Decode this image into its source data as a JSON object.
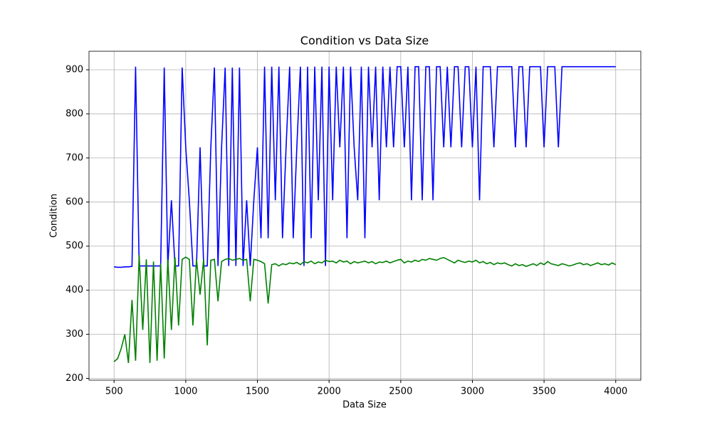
{
  "chart_data": {
    "type": "line",
    "title": "Condition vs Data Size",
    "x_label": "Data Size",
    "y_label": "Condition",
    "x": [
      500,
      525,
      550,
      575,
      600,
      625,
      650,
      675,
      700,
      725,
      750,
      775,
      800,
      825,
      850,
      875,
      900,
      925,
      950,
      975,
      1000,
      1025,
      1050,
      1075,
      1100,
      1125,
      1150,
      1175,
      1200,
      1225,
      1250,
      1275,
      1300,
      1325,
      1350,
      1375,
      1400,
      1425,
      1450,
      1475,
      1500,
      1525,
      1550,
      1575,
      1600,
      1625,
      1650,
      1675,
      1700,
      1725,
      1750,
      1775,
      1800,
      1825,
      1850,
      1875,
      1900,
      1925,
      1950,
      1975,
      2000,
      2025,
      2050,
      2075,
      2100,
      2125,
      2150,
      2175,
      2200,
      2225,
      2250,
      2275,
      2300,
      2325,
      2350,
      2375,
      2400,
      2425,
      2450,
      2475,
      2500,
      2525,
      2550,
      2575,
      2600,
      2625,
      2650,
      2675,
      2700,
      2725,
      2750,
      2775,
      2800,
      2825,
      2850,
      2875,
      2900,
      2925,
      2950,
      2975,
      3000,
      3025,
      3050,
      3075,
      3100,
      3125,
      3150,
      3175,
      3200,
      3225,
      3250,
      3275,
      3300,
      3325,
      3350,
      3375,
      3400,
      3425,
      3450,
      3475,
      3500,
      3525,
      3550,
      3575,
      3600,
      3625,
      3650,
      3675,
      3700,
      3725,
      3750,
      3775,
      3800,
      3825,
      3850,
      3875,
      3900,
      3925,
      3950,
      3975,
      4000
    ],
    "series": [
      {
        "color": "#0000ff",
        "values": [
          453,
          452,
          452,
          453,
          453,
          454,
          907,
          455,
          455,
          455,
          455,
          455,
          455,
          455,
          905,
          455,
          604,
          455,
          455,
          905,
          724,
          604,
          455,
          455,
          724,
          455,
          455,
          724,
          905,
          455,
          724,
          905,
          455,
          905,
          455,
          905,
          455,
          604,
          455,
          604,
          724,
          518,
          907,
          518,
          907,
          604,
          907,
          518,
          724,
          907,
          518,
          724,
          907,
          455,
          907,
          518,
          907,
          604,
          907,
          455,
          907,
          604,
          907,
          724,
          907,
          518,
          907,
          724,
          604,
          907,
          518,
          907,
          724,
          907,
          604,
          907,
          724,
          907,
          724,
          907,
          907,
          724,
          907,
          604,
          907,
          907,
          604,
          907,
          907,
          604,
          907,
          907,
          724,
          907,
          724,
          907,
          907,
          724,
          907,
          907,
          724,
          907,
          604,
          907,
          907,
          907,
          724,
          907,
          907,
          907,
          907,
          907,
          724,
          907,
          907,
          724,
          907,
          907,
          907,
          907,
          724,
          907,
          907,
          907,
          724,
          907,
          907,
          907,
          907,
          907,
          907,
          907,
          907,
          907,
          907,
          907,
          907,
          907,
          907,
          907,
          907
        ]
      },
      {
        "color": "#008000",
        "values": [
          238,
          245,
          268,
          300,
          235,
          378,
          240,
          480,
          310,
          470,
          235,
          465,
          240,
          460,
          245,
          470,
          310,
          475,
          320,
          470,
          475,
          470,
          320,
          470,
          390,
          470,
          275,
          468,
          470,
          375,
          465,
          470,
          472,
          468,
          470,
          472,
          468,
          470,
          375,
          470,
          468,
          465,
          460,
          370,
          458,
          460,
          455,
          460,
          458,
          462,
          460,
          463,
          458,
          465,
          462,
          466,
          460,
          464,
          462,
          468,
          465,
          466,
          462,
          468,
          464,
          466,
          460,
          465,
          462,
          464,
          466,
          462,
          465,
          460,
          464,
          463,
          466,
          462,
          465,
          468,
          470,
          462,
          466,
          464,
          468,
          465,
          470,
          468,
          472,
          470,
          468,
          472,
          474,
          470,
          466,
          462,
          468,
          465,
          463,
          466,
          464,
          468,
          462,
          465,
          460,
          463,
          458,
          462,
          460,
          462,
          458,
          455,
          460,
          456,
          458,
          454,
          457,
          460,
          456,
          462,
          458,
          465,
          460,
          458,
          456,
          460,
          458,
          455,
          457,
          460,
          462,
          458,
          460,
          456,
          459,
          462,
          458,
          460,
          457,
          462,
          458
        ]
      }
    ],
    "xlim": [
      325,
      4175
    ],
    "ylim": [
      196,
      942
    ],
    "xticks": [
      500,
      1000,
      1500,
      2000,
      2500,
      3000,
      3500,
      4000
    ],
    "yticks": [
      200,
      300,
      400,
      500,
      600,
      700,
      800,
      900
    ],
    "grid": true
  }
}
